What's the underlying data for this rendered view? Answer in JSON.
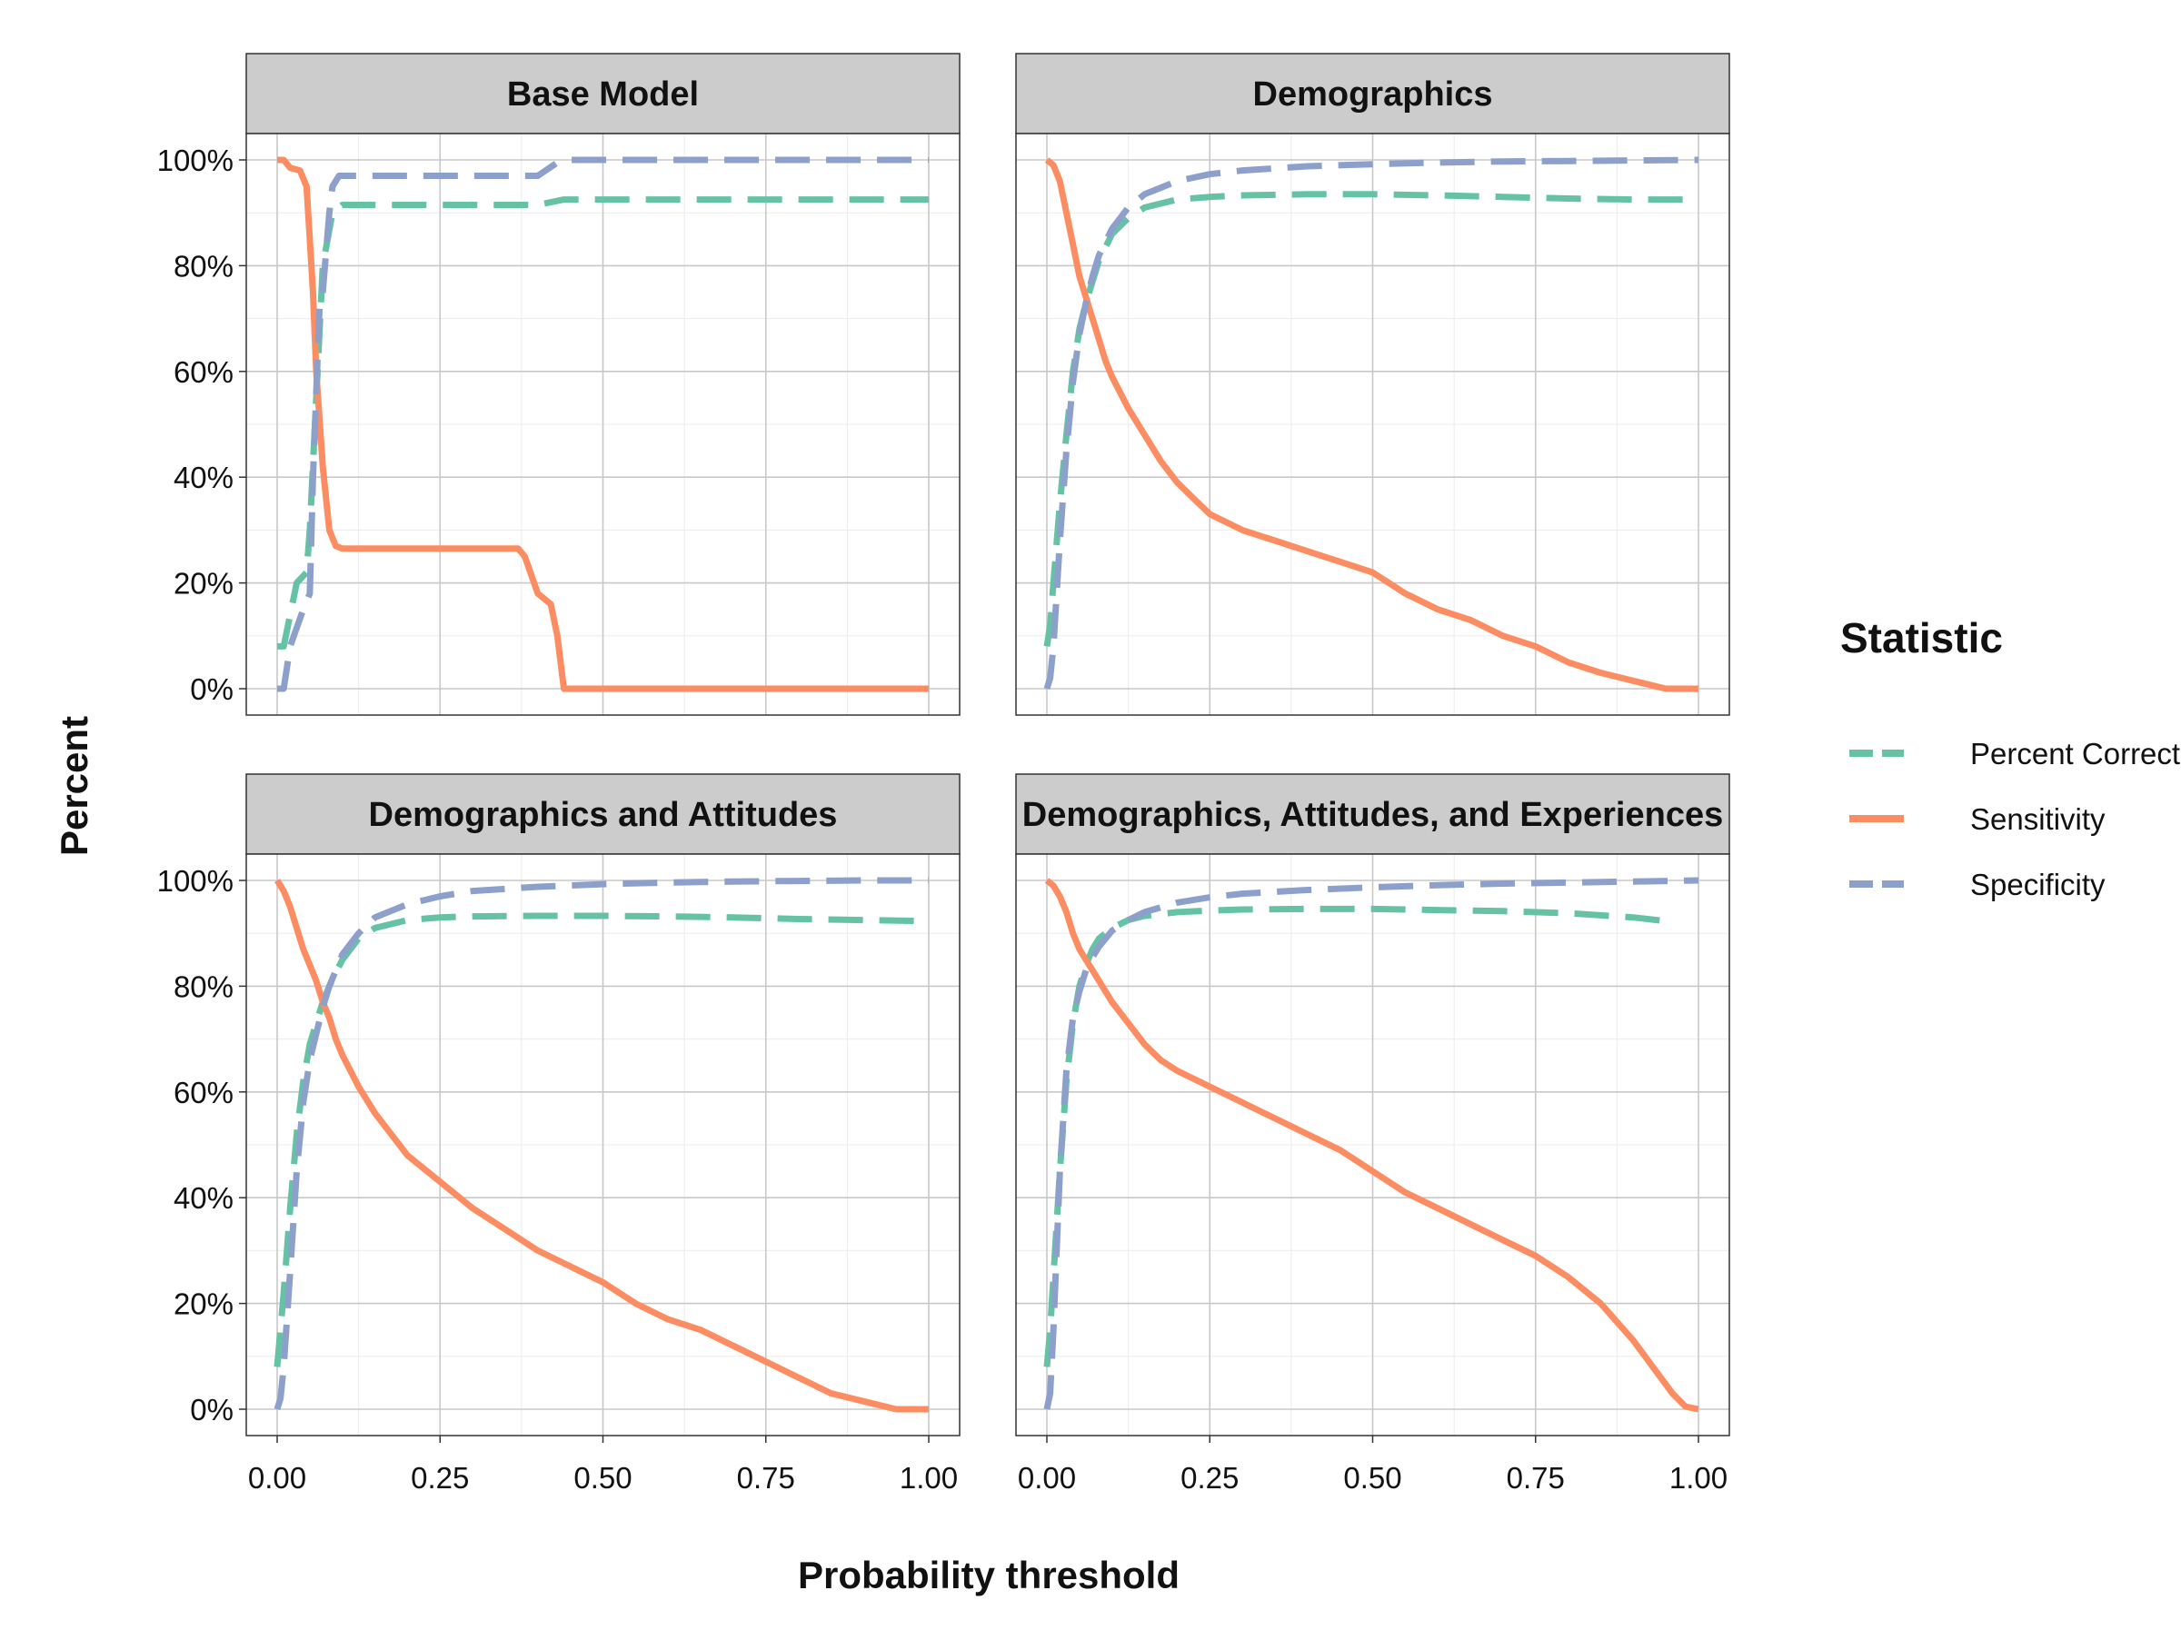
{
  "chart_data": {
    "type": "line",
    "xlabel": "Probability threshold",
    "ylabel": "Percent",
    "xlim": [
      0,
      1
    ],
    "ylim": [
      0,
      100
    ],
    "x_ticks": [
      "0.00",
      "0.25",
      "0.50",
      "0.75",
      "1.00"
    ],
    "y_ticks": [
      "0%",
      "20%",
      "40%",
      "60%",
      "80%",
      "100%"
    ],
    "grid": true,
    "legend": {
      "title": "Statistic",
      "placement": "right",
      "items": [
        {
          "name": "Percent Correct",
          "color": "#66c2a5",
          "dash": "dashed"
        },
        {
          "name": "Sensitivity",
          "color": "#fc8d62",
          "dash": "solid"
        },
        {
          "name": "Specificity",
          "color": "#8da0cb",
          "dash": "dashed"
        }
      ]
    },
    "panels": [
      {
        "title": "Base Model",
        "series": [
          {
            "name": "Percent Correct",
            "x": [
              0,
              0.01,
              0.03,
              0.045,
              0.05,
              0.06,
              0.07,
              0.085,
              0.1,
              0.2,
              0.3,
              0.4,
              0.44,
              0.6,
              0.8,
              1.0
            ],
            "y": [
              8,
              8,
              20,
              22,
              30,
              55,
              80,
              90,
              91.5,
              91.5,
              91.5,
              91.5,
              92.5,
              92.5,
              92.5,
              92.5
            ]
          },
          {
            "name": "Sensitivity",
            "x": [
              0,
              0.01,
              0.02,
              0.035,
              0.045,
              0.05,
              0.055,
              0.06,
              0.07,
              0.08,
              0.09,
              0.1,
              0.2,
              0.3,
              0.37,
              0.38,
              0.4,
              0.42,
              0.43,
              0.44,
              0.6,
              0.8,
              1.0
            ],
            "y": [
              100,
              100,
              98.5,
              98,
              95,
              85,
              75,
              60,
              42,
              30,
              27,
              26.5,
              26.5,
              26.5,
              26.5,
              25,
              18,
              16,
              10,
              0,
              0,
              0,
              0
            ]
          },
          {
            "name": "Specificity",
            "x": [
              0,
              0.01,
              0.02,
              0.04,
              0.05,
              0.055,
              0.065,
              0.07,
              0.08,
              0.085,
              0.095,
              0.1,
              0.2,
              0.3,
              0.4,
              0.43,
              0.45,
              0.6,
              0.8,
              1.0
            ],
            "y": [
              0,
              0,
              8,
              15,
              18,
              40,
              72,
              75,
              90,
              95,
              97,
              97,
              97,
              97,
              97,
              99.5,
              100,
              100,
              100,
              100
            ]
          }
        ]
      },
      {
        "title": "Demographics",
        "series": [
          {
            "name": "Percent Correct",
            "x": [
              0,
              0.005,
              0.01,
              0.02,
              0.03,
              0.04,
              0.05,
              0.06,
              0.07,
              0.08,
              0.1,
              0.125,
              0.15,
              0.2,
              0.25,
              0.3,
              0.4,
              0.5,
              0.6,
              0.7,
              0.8,
              0.9,
              1.0
            ],
            "y": [
              8,
              12,
              20,
              35,
              48,
              60,
              68,
              73,
              77,
              81,
              86,
              89,
              91,
              92.5,
              93,
              93.3,
              93.5,
              93.5,
              93.3,
              93,
              92.7,
              92.5,
              92.5
            ]
          },
          {
            "name": "Sensitivity",
            "x": [
              0,
              0.01,
              0.02,
              0.03,
              0.04,
              0.05,
              0.06,
              0.07,
              0.08,
              0.09,
              0.1,
              0.125,
              0.15,
              0.175,
              0.2,
              0.225,
              0.25,
              0.3,
              0.35,
              0.4,
              0.45,
              0.5,
              0.55,
              0.6,
              0.65,
              0.7,
              0.75,
              0.8,
              0.85,
              0.9,
              0.95,
              1.0
            ],
            "y": [
              100,
              99,
              96,
              90,
              84,
              78,
              74,
              70,
              66,
              62,
              59,
              53,
              48,
              43,
              39,
              36,
              33,
              30,
              28,
              26,
              24,
              22,
              18,
              15,
              13,
              10,
              8,
              5,
              3,
              1.5,
              0,
              0
            ]
          },
          {
            "name": "Specificity",
            "x": [
              0,
              0.005,
              0.01,
              0.02,
              0.03,
              0.04,
              0.05,
              0.06,
              0.07,
              0.08,
              0.1,
              0.125,
              0.15,
              0.2,
              0.25,
              0.3,
              0.4,
              0.5,
              0.6,
              0.7,
              0.8,
              0.9,
              1.0
            ],
            "y": [
              0,
              2,
              8,
              28,
              45,
              58,
              67,
              73,
              78,
              82,
              87,
              91,
              93.5,
              96,
              97.3,
              98,
              98.8,
              99.2,
              99.5,
              99.7,
              99.8,
              99.9,
              100
            ]
          }
        ]
      },
      {
        "title": "Demographics and Attitudes",
        "series": [
          {
            "name": "Percent Correct",
            "x": [
              0,
              0.005,
              0.01,
              0.02,
              0.03,
              0.04,
              0.05,
              0.06,
              0.07,
              0.08,
              0.1,
              0.125,
              0.15,
              0.2,
              0.25,
              0.3,
              0.4,
              0.5,
              0.6,
              0.7,
              0.8,
              0.9,
              1.0
            ],
            "y": [
              8,
              15,
              22,
              38,
              52,
              62,
              69,
              73,
              77,
              80,
              85,
              89,
              91,
              92.5,
              93,
              93.2,
              93.3,
              93.3,
              93.2,
              93,
              92.7,
              92.5,
              92.3
            ]
          },
          {
            "name": "Sensitivity",
            "x": [
              0,
              0.01,
              0.02,
              0.03,
              0.04,
              0.05,
              0.06,
              0.07,
              0.08,
              0.09,
              0.1,
              0.125,
              0.15,
              0.175,
              0.2,
              0.25,
              0.3,
              0.35,
              0.4,
              0.45,
              0.5,
              0.55,
              0.6,
              0.65,
              0.7,
              0.75,
              0.8,
              0.85,
              0.9,
              0.95,
              1.0
            ],
            "y": [
              100,
              98,
              95,
              91,
              87,
              84,
              81,
              77,
              74,
              70,
              67,
              61,
              56,
              52,
              48,
              43,
              38,
              34,
              30,
              27,
              24,
              20,
              17,
              15,
              12,
              9,
              6,
              3,
              1.5,
              0,
              0
            ]
          },
          {
            "name": "Specificity",
            "x": [
              0,
              0.005,
              0.01,
              0.02,
              0.03,
              0.04,
              0.05,
              0.06,
              0.07,
              0.08,
              0.1,
              0.125,
              0.15,
              0.2,
              0.25,
              0.3,
              0.4,
              0.5,
              0.6,
              0.7,
              0.8,
              0.9,
              1.0
            ],
            "y": [
              0,
              2,
              8,
              26,
              45,
              58,
              66,
              71,
              76,
              80,
              86,
              90,
              93,
              95.5,
              97,
              98,
              98.8,
              99.3,
              99.6,
              99.8,
              99.9,
              100,
              100
            ]
          }
        ]
      },
      {
        "title": "Demographics, Attitudes, and Experiences",
        "series": [
          {
            "name": "Percent Correct",
            "x": [
              0,
              0.005,
              0.01,
              0.02,
              0.03,
              0.04,
              0.05,
              0.06,
              0.07,
              0.08,
              0.1,
              0.125,
              0.15,
              0.2,
              0.25,
              0.3,
              0.4,
              0.5,
              0.6,
              0.7,
              0.8,
              0.9,
              0.95
            ],
            "y": [
              8,
              15,
              25,
              45,
              62,
              73,
              80,
              84,
              87,
              89,
              91,
              92.5,
              93.3,
              94,
              94.3,
              94.5,
              94.6,
              94.6,
              94.4,
              94.2,
              93.8,
              93,
              92.3
            ]
          },
          {
            "name": "Sensitivity",
            "x": [
              0,
              0.01,
              0.02,
              0.03,
              0.04,
              0.05,
              0.06,
              0.07,
              0.08,
              0.1,
              0.125,
              0.15,
              0.175,
              0.2,
              0.25,
              0.3,
              0.35,
              0.4,
              0.45,
              0.5,
              0.55,
              0.6,
              0.65,
              0.7,
              0.75,
              0.8,
              0.85,
              0.9,
              0.93,
              0.96,
              0.98,
              1.0
            ],
            "y": [
              100,
              99,
              97,
              94,
              90,
              87,
              85,
              83,
              81,
              77,
              73,
              69,
              66,
              64,
              61,
              58,
              55,
              52,
              49,
              45,
              41,
              38,
              35,
              32,
              29,
              25,
              20,
              13,
              8,
              3,
              0.5,
              0
            ]
          },
          {
            "name": "Specificity",
            "x": [
              0,
              0.005,
              0.01,
              0.02,
              0.03,
              0.04,
              0.05,
              0.06,
              0.07,
              0.08,
              0.1,
              0.125,
              0.15,
              0.2,
              0.25,
              0.3,
              0.4,
              0.5,
              0.6,
              0.7,
              0.8,
              0.9,
              1.0
            ],
            "y": [
              0,
              3,
              15,
              45,
              64,
              74,
              79,
              83,
              85.5,
              87.5,
              90.5,
              92.5,
              94,
              95.8,
              96.8,
              97.5,
              98.2,
              98.7,
              99.1,
              99.4,
              99.6,
              99.8,
              100
            ]
          }
        ]
      }
    ]
  }
}
